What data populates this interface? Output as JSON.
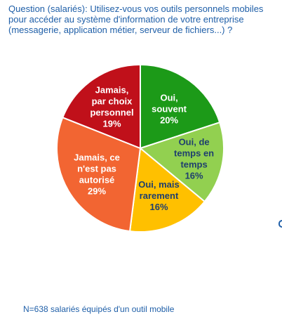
{
  "question": "Question (salariés): Utilisez-vous vos outils personnels mobiles pour accéder au système d'information de votre entreprise (messagerie, application métier, serveur de fichiers...) ?",
  "note": "N=638 salariés équipés d'un outil mobile",
  "colors": {
    "text": "#1f5fa8",
    "label_light": "#ffffff",
    "label_dark": "#1f3f6e"
  },
  "chart_data": {
    "type": "pie",
    "title": "",
    "slices": [
      {
        "label_lines": [
          "Oui,",
          "souvent"
        ],
        "pct_label": "20%",
        "value": 20,
        "color": "#1c9a18",
        "label_color": "#ffffff"
      },
      {
        "label_lines": [
          "Oui, de",
          "temps en",
          "temps"
        ],
        "pct_label": "16%",
        "value": 16,
        "color": "#92d050",
        "label_color": "#1f3f6e"
      },
      {
        "label_lines": [
          "Oui, mais",
          "rarement"
        ],
        "pct_label": "16%",
        "value": 16,
        "color": "#ffc000",
        "label_color": "#1f3f6e"
      },
      {
        "label_lines": [
          "Jamais, ce",
          "n'est pas",
          "autorisé"
        ],
        "pct_label": "29%",
        "value": 29,
        "color": "#f26532",
        "label_color": "#ffffff"
      },
      {
        "label_lines": [
          "Jamais,",
          "par choix",
          "personnel"
        ],
        "pct_label": "19%",
        "value": 19,
        "color": "#c0101a",
        "label_color": "#ffffff"
      }
    ]
  }
}
